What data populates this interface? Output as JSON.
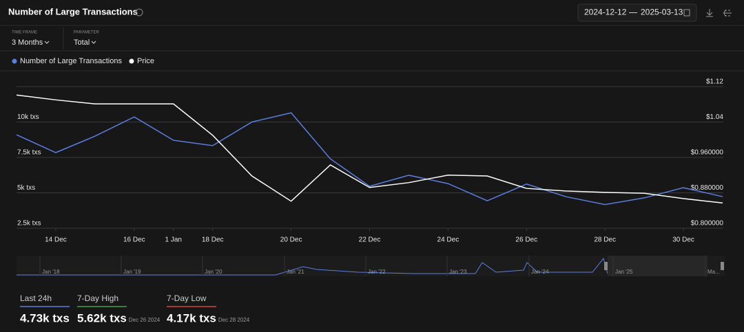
{
  "header": {
    "title": "Number of Large Transactions",
    "date_from": "2024-12-12",
    "date_to": "2025-03-13"
  },
  "controls": [
    {
      "label": "TIME FRAME",
      "value": "3 Months"
    },
    {
      "label": "PARAMETER",
      "value": "Total"
    }
  ],
  "chart_data": {
    "type": "line",
    "categories": [
      null,
      "14 Dec",
      null,
      "16 Dec",
      "1 Jan",
      "18 Dec",
      null,
      "20 Dec",
      null,
      "22 Dec",
      null,
      "24 Dec",
      null,
      "26 Dec",
      null,
      "28 Dec",
      null,
      "30 Dec",
      null
    ],
    "series": [
      {
        "name": "Number of Large Transactions",
        "color": "#5b7fe0",
        "axis": "y",
        "values": [
          9100,
          7840,
          9000,
          10360,
          8710,
          8330,
          10000,
          10650,
          7400,
          5460,
          6240,
          5650,
          4440,
          5620,
          4730,
          4170,
          4640,
          5360,
          4730
        ]
      },
      {
        "name": "Price",
        "color": "#ffffff",
        "axis": "y2",
        "values": [
          1.101,
          1.09,
          1.081,
          1.081,
          1.081,
          1.01,
          0.918,
          0.861,
          0.943,
          0.892,
          0.903,
          0.92,
          0.918,
          0.89,
          0.884,
          0.881,
          0.879,
          0.867,
          0.857
        ]
      }
    ],
    "ylim": [
      2500,
      12500
    ],
    "yticks": [
      {
        "value": 10000,
        "label": "10k txs"
      },
      {
        "value": 7500,
        "label": "7.5k txs"
      },
      {
        "value": 5000,
        "label": "5k txs"
      },
      {
        "value": 2500,
        "label": "2.5k txs"
      }
    ],
    "y2lim": [
      0.8,
      1.12
    ],
    "y2ticks": [
      {
        "value": 1.12,
        "label": "$1.12"
      },
      {
        "value": 1.04,
        "label": "$1.04"
      },
      {
        "value": 0.96,
        "label": "$0.960000"
      },
      {
        "value": 0.88,
        "label": "$0.880000"
      },
      {
        "value": 0.8,
        "label": "$0.800000"
      }
    ],
    "grid": true
  },
  "navigator": {
    "labels": [
      "Jan '18",
      "Jan '19",
      "Jan '20",
      "Jan '21",
      "Jan '22",
      "Jan '23",
      "Jan '24",
      "Jan '25",
      "Ma..."
    ]
  },
  "stats": [
    {
      "label": "Last 24h",
      "value": "4.73k txs"
    },
    {
      "label": "7-Day High",
      "value": "5.62k txs",
      "date": "Dec 26 2024"
    },
    {
      "label": "7-Day Low",
      "value": "4.17k txs",
      "date": "Dec 28 2024"
    }
  ]
}
